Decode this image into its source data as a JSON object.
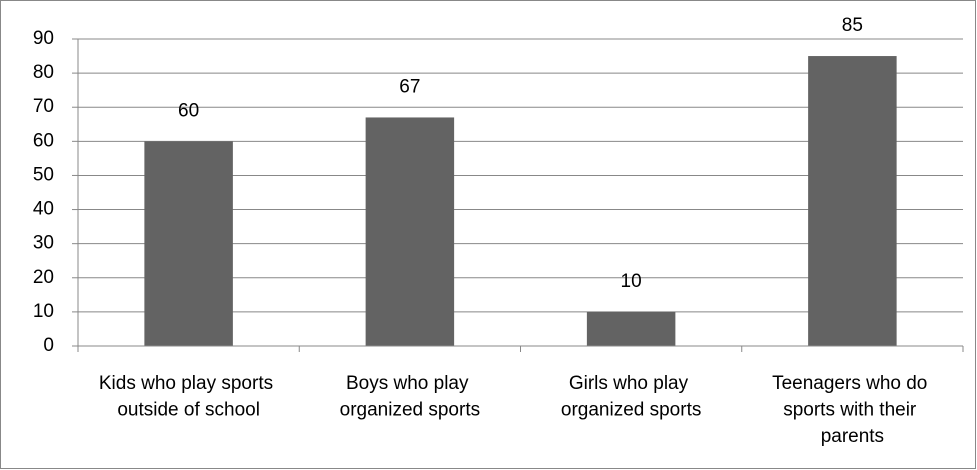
{
  "chart_data": {
    "type": "bar",
    "categories": [
      "Kids who play sports outside of school",
      "Boys who play organized sports",
      "Girls who play organized sports",
      "Teenagers who do sports with their parents"
    ],
    "values": [
      60,
      67,
      10,
      85
    ],
    "color": "#636363",
    "ylim": [
      0,
      90
    ],
    "yticks": [
      0,
      10,
      20,
      30,
      40,
      50,
      60,
      70,
      80,
      90
    ],
    "grid": true
  }
}
